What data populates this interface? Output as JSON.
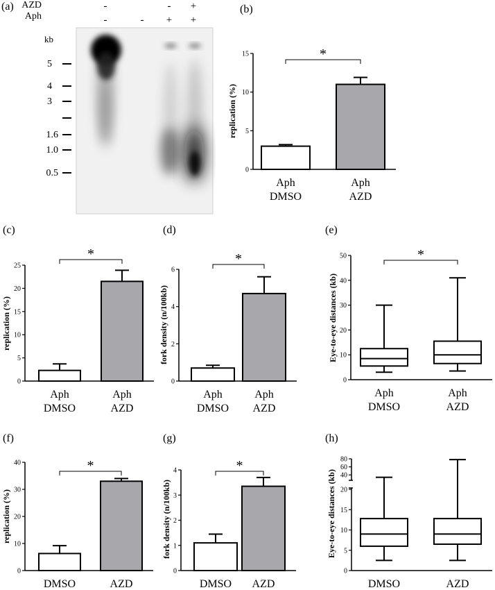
{
  "panel_a": {
    "label": "(a)",
    "row_labels": [
      "AZD",
      "Aph"
    ],
    "lanes": [
      {
        "azd": "-",
        "aph": "-"
      },
      {
        "azd": "",
        "aph": "-"
      },
      {
        "azd": "-",
        "aph": "+"
      },
      {
        "azd": "+",
        "aph": "+"
      }
    ],
    "unit": "kb",
    "markers": [
      "5",
      "4",
      "3",
      "",
      "1.6",
      "1.0",
      "0.5"
    ]
  },
  "chart_data": [
    {
      "panel": "(b)",
      "type": "bar",
      "categories": [
        [
          "Aph",
          "DMSO"
        ],
        [
          "Aph",
          "AZD"
        ]
      ],
      "values": [
        3.0,
        11.0
      ],
      "errors": [
        0.2,
        0.9
      ],
      "colors": [
        "#ffffff",
        "#a8a8ac"
      ],
      "ylabel": "replication (%)",
      "ylim": [
        0,
        15
      ],
      "ticks": [
        0,
        5,
        10,
        15
      ],
      "tick_labels": [
        "0",
        "5",
        "10",
        "15"
      ],
      "significance": "*"
    },
    {
      "panel": "(c)",
      "type": "bar",
      "categories": [
        [
          "Aph",
          "DMSO"
        ],
        [
          "Aph",
          "AZD"
        ]
      ],
      "values": [
        2.3,
        21.5
      ],
      "errors": [
        1.4,
        2.4
      ],
      "colors": [
        "#ffffff",
        "#a8a8ac"
      ],
      "ylabel": "replication (%)",
      "ylim": [
        0,
        25
      ],
      "ticks": [
        0,
        5,
        10,
        15,
        20,
        25
      ],
      "tick_labels": [
        "0",
        "5",
        "10",
        "15",
        "20",
        "25"
      ],
      "significance": "*"
    },
    {
      "panel": "(d)",
      "type": "bar",
      "categories": [
        [
          "Aph",
          "DMSO"
        ],
        [
          "Aph",
          "AZD"
        ]
      ],
      "values": [
        0.7,
        4.7
      ],
      "errors": [
        0.15,
        0.9
      ],
      "colors": [
        "#ffffff",
        "#a8a8ac"
      ],
      "ylabel": "fork density (n/100kb)",
      "ylim": [
        0,
        6
      ],
      "ticks": [
        0,
        2,
        4,
        6
      ],
      "tick_labels": [
        "0",
        "2",
        "4",
        "6"
      ],
      "significance": "*"
    },
    {
      "panel": "(e)",
      "type": "box",
      "categories": [
        [
          "Aph",
          "DMSO"
        ],
        [
          "Aph",
          "AZD"
        ]
      ],
      "boxes": [
        {
          "min": 3,
          "q1": 5.5,
          "median": 8.5,
          "q3": 12.5,
          "max": 30
        },
        {
          "min": 3.5,
          "q1": 6.5,
          "median": 10,
          "q3": 15.5,
          "max": 41
        }
      ],
      "ylabel": "Eye-to-eye distances (kb)",
      "ylim": [
        0,
        50
      ],
      "ticks": [
        0,
        10,
        20,
        30,
        40,
        50
      ],
      "tick_labels": [
        "0",
        "10",
        "20",
        "30",
        "40",
        "50"
      ],
      "significance": "*"
    },
    {
      "panel": "(f)",
      "type": "bar",
      "categories": [
        [
          "DMSO"
        ],
        [
          "AZD"
        ]
      ],
      "values": [
        6.3,
        33.0
      ],
      "errors": [
        2.9,
        1.0
      ],
      "colors": [
        "#ffffff",
        "#a8a8ac"
      ],
      "ylabel": "replication (%)",
      "ylim": [
        0,
        40
      ],
      "ticks": [
        0,
        10,
        20,
        30,
        40
      ],
      "tick_labels": [
        "0",
        "10",
        "20",
        "30",
        "40"
      ],
      "significance": "*"
    },
    {
      "panel": "(g)",
      "type": "bar",
      "categories": [
        [
          "DMSO"
        ],
        [
          "AZD"
        ]
      ],
      "values": [
        1.1,
        3.35
      ],
      "errors": [
        0.35,
        0.35
      ],
      "colors": [
        "#ffffff",
        "#a8a8ac"
      ],
      "ylabel": "fork density (n/100kb)",
      "ylim": [
        0,
        4
      ],
      "ticks": [
        0,
        1,
        2,
        3,
        4
      ],
      "tick_labels": [
        "0",
        "1",
        "2",
        "3",
        "4"
      ],
      "significance": "*"
    },
    {
      "panel": "(h)",
      "type": "box",
      "categories": [
        [
          "DMSO"
        ],
        [
          "AZD"
        ]
      ],
      "boxes": [
        {
          "min": 2.5,
          "q1": 6,
          "median": 9,
          "q3": 12.8,
          "max": 34
        },
        {
          "min": 2.5,
          "q1": 6.5,
          "median": 9,
          "q3": 12.8,
          "max": 78
        }
      ],
      "ylabel": "Eye-to-eye distances (kb)",
      "ylim": [
        0,
        80
      ],
      "axis_break": [
        20,
        30
      ],
      "ticks": [
        0,
        5,
        10,
        15,
        20,
        40,
        60,
        80
      ],
      "tick_labels": [
        "0",
        "5",
        "10",
        "15",
        "20",
        "40",
        "60",
        "80"
      ],
      "significance": ""
    }
  ]
}
